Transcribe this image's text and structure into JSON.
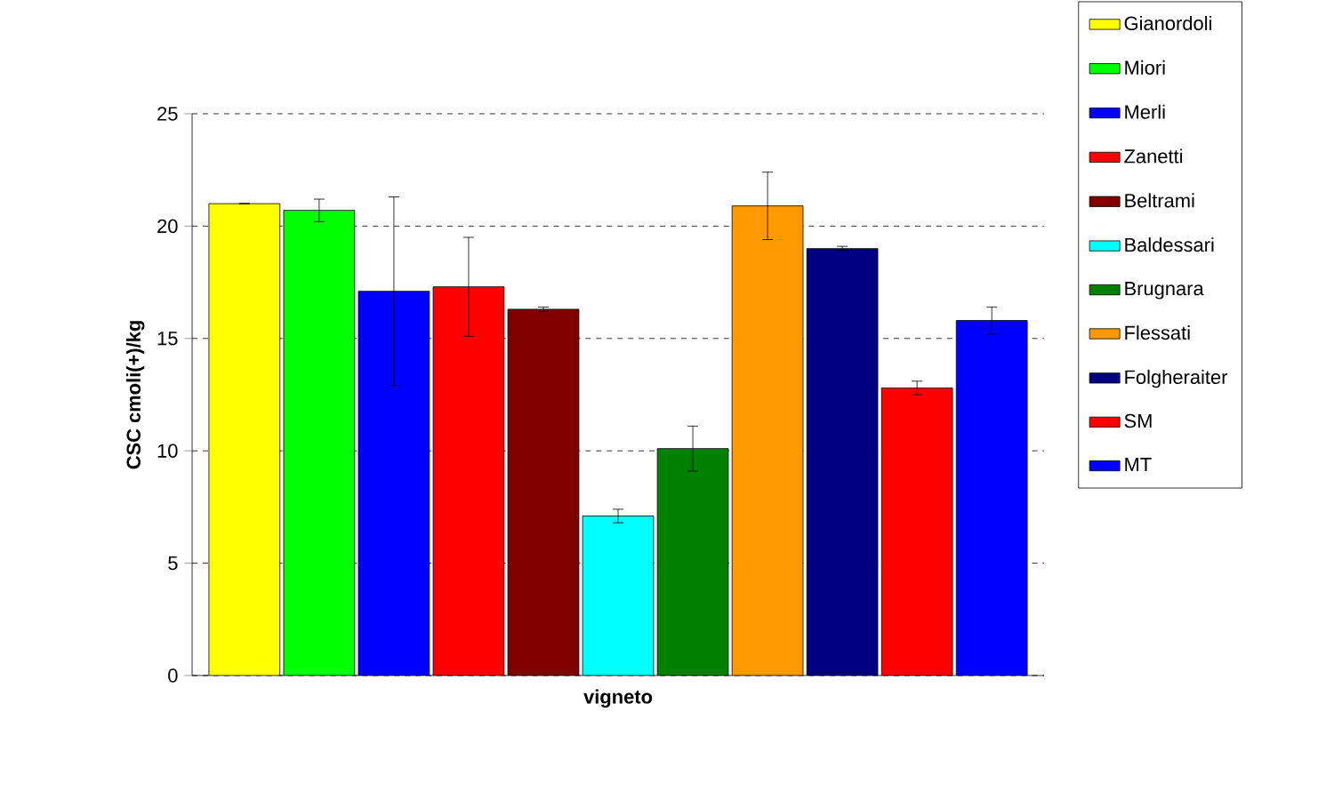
{
  "chart_data": {
    "type": "bar",
    "categories": [
      null
    ],
    "xlabel": "vigneto",
    "ylabel": "CSC cmoli(+)/kg",
    "ylim": [
      0,
      25
    ],
    "yticks": [
      0,
      5,
      10,
      15,
      20,
      25
    ],
    "grid": "y",
    "legend": "right",
    "series": [
      {
        "name": "Gianordoli",
        "color": "#ffff00",
        "values": [
          21.0
        ],
        "errors": [
          0
        ]
      },
      {
        "name": "Miori",
        "color": "#00ff00",
        "values": [
          20.7
        ],
        "errors": [
          0.5
        ]
      },
      {
        "name": "Merli",
        "color": "#0000ff",
        "values": [
          17.1
        ],
        "errors": [
          4.2
        ]
      },
      {
        "name": "Zanetti",
        "color": "#ff0000",
        "values": [
          17.3
        ],
        "errors": [
          2.2
        ]
      },
      {
        "name": "Beltrami",
        "color": "#800000",
        "values": [
          16.3
        ],
        "errors": [
          0.1
        ]
      },
      {
        "name": "Baldessari",
        "color": "#00ffff",
        "values": [
          7.1
        ],
        "errors": [
          0.3
        ]
      },
      {
        "name": "Brugnara",
        "color": "#008000",
        "values": [
          10.1
        ],
        "errors": [
          1.0
        ]
      },
      {
        "name": "Flessati",
        "color": "#ff9900",
        "values": [
          20.9
        ],
        "errors": [
          1.5
        ]
      },
      {
        "name": "Folgheraiter",
        "color": "#000080",
        "values": [
          19.0
        ],
        "errors": [
          0.1
        ]
      },
      {
        "name": "SM",
        "color": "#ff0000",
        "values": [
          12.8
        ],
        "errors": [
          0.3
        ]
      },
      {
        "name": "MT",
        "color": "#0000ff",
        "values": [
          15.8
        ],
        "errors": [
          0.6
        ]
      }
    ]
  }
}
